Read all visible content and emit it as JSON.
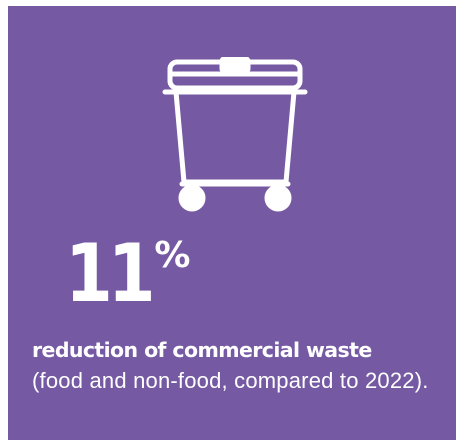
{
  "infographic": {
    "background_color": "#755aa3",
    "text_color": "#ffffff",
    "icon": "waste-container-icon",
    "stat": {
      "value": "11",
      "unit": "%"
    },
    "headline": "reduction of commercial waste",
    "detail": "(food and non-food, compared to 2022)."
  }
}
